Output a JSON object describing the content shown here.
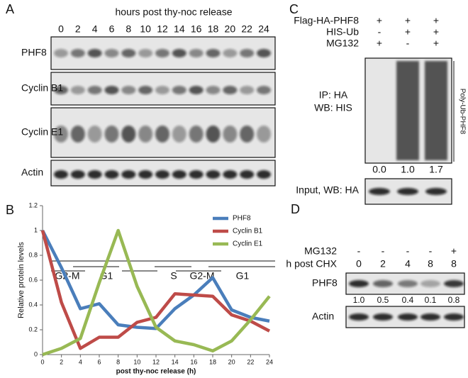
{
  "panels": {
    "a": {
      "label": "A",
      "title": "hours post thy-noc release",
      "lanes": [
        0,
        2,
        4,
        6,
        8,
        10,
        12,
        14,
        16,
        18,
        20,
        22,
        24
      ],
      "rows": [
        "PHF8",
        "Cyclin B1",
        "Cyclin E1",
        "Actin"
      ],
      "phases": [
        "G2-M",
        "G1",
        "S",
        "G2-M",
        "G1"
      ]
    },
    "c": {
      "label": "C",
      "conditions": [
        {
          "name": "Flag-HA-PHF8",
          "signs": [
            "+",
            "+",
            "+"
          ]
        },
        {
          "name": "HIS-Ub",
          "signs": [
            "-",
            "+",
            "+"
          ]
        },
        {
          "name": "MG132",
          "signs": [
            "+",
            "-",
            "+"
          ]
        }
      ],
      "ip_label": "IP: HA",
      "wb_label": "WB: HIS",
      "bracket_label": "Poly-Ub-PHF8",
      "quant": [
        "0.0",
        "1.0",
        "1.7"
      ],
      "input_label": "Input, WB: HA"
    },
    "d": {
      "label": "D",
      "conditions": [
        {
          "name": "MG132",
          "signs": [
            "-",
            "-",
            "-",
            "-",
            "+"
          ]
        },
        {
          "name": "h post CHX",
          "signs": [
            "0",
            "2",
            "4",
            "8",
            "8"
          ]
        }
      ],
      "rows": [
        "PHF8",
        "Actin"
      ],
      "quant": [
        "1.0",
        "0.5",
        "0.4",
        "0.1",
        "0.8"
      ]
    }
  },
  "chart_data": {
    "type": "line",
    "panel_label": "B",
    "xlabel": "post thy-noc release (h)",
    "ylabel": "Relative protein levels",
    "x": [
      0,
      2,
      4,
      6,
      8,
      10,
      12,
      14,
      16,
      18,
      20,
      22,
      24
    ],
    "series": [
      {
        "name": "PHF8",
        "color": "#4a7ebb",
        "values": [
          1,
          0.7,
          0.37,
          0.41,
          0.24,
          0.22,
          0.21,
          0.37,
          0.48,
          0.62,
          0.36,
          0.3,
          0.27
        ]
      },
      {
        "name": "Cyclin B1",
        "color": "#be4b48",
        "values": [
          1,
          0.42,
          0.05,
          0.14,
          0.14,
          0.26,
          0.3,
          0.49,
          0.48,
          0.47,
          0.32,
          0.27,
          0.19
        ]
      },
      {
        "name": "Cyclin E1",
        "color": "#98b954",
        "values": [
          0,
          0.05,
          0.13,
          0.58,
          1,
          0.55,
          0.22,
          0.11,
          0.08,
          0.03,
          0.11,
          0.28,
          0.47
        ]
      }
    ],
    "xlim": [
      0,
      24
    ],
    "ylim": [
      0,
      1.2
    ],
    "xticks": [
      0,
      2,
      4,
      6,
      8,
      10,
      12,
      14,
      16,
      18,
      20,
      22,
      24
    ],
    "yticks": [
      0,
      0.2,
      0.4,
      0.6,
      0.8,
      1,
      1.2
    ],
    "legend": "upper right"
  }
}
